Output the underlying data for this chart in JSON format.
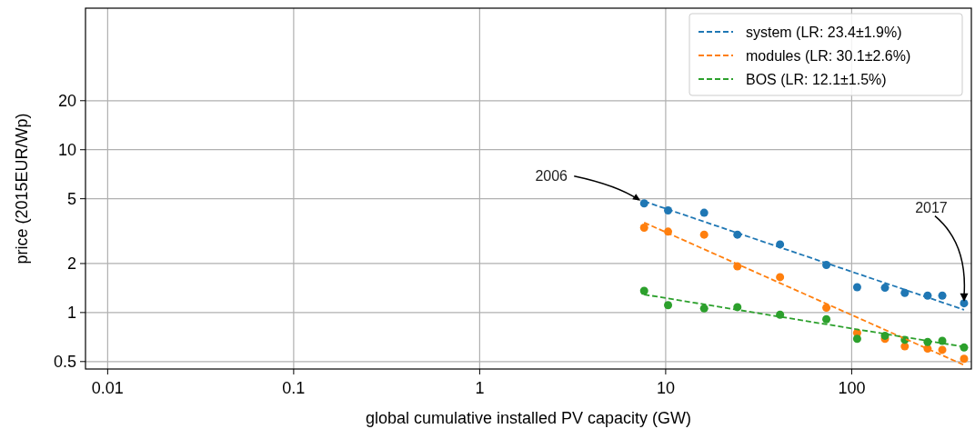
{
  "chart_data": {
    "type": "scatter",
    "xlabel": "global cumulative installed PV capacity (GW)",
    "ylabel": "price (2015EUR/Wp)",
    "log": "xy",
    "grid": true,
    "legend": "top right",
    "marker": "circle",
    "xlim": [
      0.0076,
      440
    ],
    "ylim": [
      0.45,
      74
    ],
    "xticks": [
      0.01,
      0.1,
      1,
      10,
      100
    ],
    "yticks": [
      0.5,
      1,
      2,
      5,
      10,
      20
    ],
    "series": [
      {
        "color": "#1f77b4",
        "x": [
          7.66,
          10.3,
          16.1,
          24.3,
          41.2,
          73.1,
          107,
          151,
          193,
          256,
          307,
          402
        ],
        "values": [
          4.68,
          4.24,
          4.1,
          3.01,
          2.62,
          1.96,
          1.43,
          1.42,
          1.32,
          1.27,
          1.27,
          1.14
        ]
      },
      {
        "color": "#ff7f0e",
        "x": [
          7.66,
          10.3,
          16.1,
          24.3,
          41.2,
          73.1,
          107,
          151,
          193,
          256,
          307,
          402
        ],
        "values": [
          3.32,
          3.14,
          3.01,
          1.92,
          1.65,
          1.07,
          0.75,
          0.69,
          0.62,
          0.6,
          0.59,
          0.52
        ]
      },
      {
        "color": "#2ca02c",
        "x": [
          7.66,
          10.3,
          16.1,
          24.3,
          41.2,
          73.1,
          107,
          151,
          193,
          256,
          307,
          402
        ],
        "values": [
          1.36,
          1.11,
          1.06,
          1.08,
          0.97,
          0.91,
          0.69,
          0.72,
          0.68,
          0.66,
          0.67,
          0.61
        ]
      },
      {
        "type": "line",
        "name": "system (LR: 23.4±1.9%)",
        "color": "#1f77b4",
        "line_style": "dashed",
        "marker": "none",
        "x": [
          7.66,
          402
        ],
        "values": [
          4.82,
          1.04
        ]
      },
      {
        "type": "line",
        "name": "modules (LR: 30.1±2.6%)",
        "color": "#ff7f0e",
        "line_style": "dashed",
        "marker": "none",
        "x": [
          7.66,
          402
        ],
        "values": [
          3.57,
          0.476
        ]
      },
      {
        "type": "line",
        "name": "BOS (LR: 12.1±1.5%)",
        "color": "#2ca02c",
        "line_style": "dashed",
        "marker": "none",
        "x": [
          7.66,
          402
        ],
        "values": [
          1.29,
          0.616
        ]
      }
    ],
    "annotations": [
      {
        "text": "2006",
        "x": 7.66,
        "y": 4.68
      },
      {
        "text": "2017",
        "x": 402,
        "y": 1.14
      }
    ]
  }
}
